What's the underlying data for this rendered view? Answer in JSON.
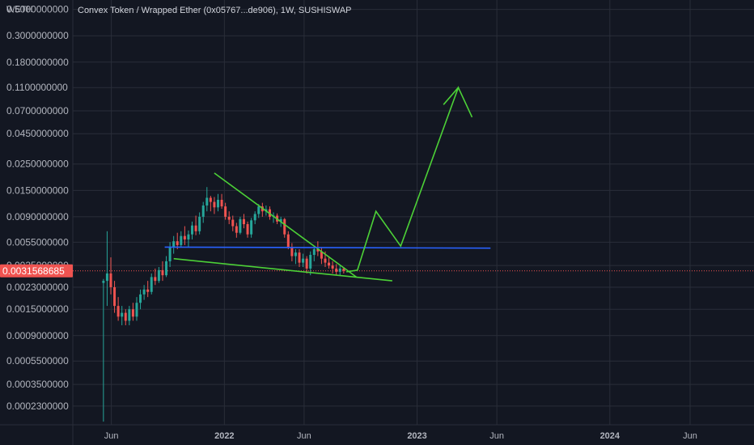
{
  "chart_data": {
    "type": "candlestick",
    "title": "Convex Token / Wrapped Ether (0x05767...de906), 1W, SUSHISWAP",
    "ylabel": "WETH",
    "y_scale": "log",
    "ylim": [
      0.00016,
      0.6
    ],
    "y_ticks": [
      {
        "value": 0.5,
        "label": "0.5000000000"
      },
      {
        "value": 0.3,
        "label": "0.3000000000"
      },
      {
        "value": 0.18,
        "label": "0.1800000000"
      },
      {
        "value": 0.11,
        "label": "0.1100000000"
      },
      {
        "value": 0.07,
        "label": "0.0700000000"
      },
      {
        "value": 0.045,
        "label": "0.0450000000"
      },
      {
        "value": 0.025,
        "label": "0.0250000000"
      },
      {
        "value": 0.015,
        "label": "0.0150000000"
      },
      {
        "value": 0.009,
        "label": "0.0090000000"
      },
      {
        "value": 0.0055,
        "label": "0.0055000000"
      },
      {
        "value": 0.0035,
        "label": "0.0035000000"
      },
      {
        "value": 0.0023,
        "label": "0.0023000000"
      },
      {
        "value": 0.0015,
        "label": "0.0015000000"
      },
      {
        "value": 0.0009,
        "label": "0.0009000000"
      },
      {
        "value": 0.00055,
        "label": "0.0005500000"
      },
      {
        "value": 0.00035,
        "label": "0.0003500000"
      },
      {
        "value": 0.00023,
        "label": "0.0002300000"
      }
    ],
    "xlim": [
      "2021-03-20",
      "2024-09-30"
    ],
    "x_ticks": [
      {
        "date": "2021-06-01",
        "label": "Jun",
        "major": false
      },
      {
        "date": "2022-01-01",
        "label": "2022",
        "major": true
      },
      {
        "date": "2022-06-01",
        "label": "Jun",
        "major": false
      },
      {
        "date": "2023-01-01",
        "label": "2023",
        "major": true
      },
      {
        "date": "2023-06-01",
        "label": "Jun",
        "major": false
      },
      {
        "date": "2024-01-01",
        "label": "2024",
        "major": true
      },
      {
        "date": "2024-06-01",
        "label": "Jun",
        "major": false
      }
    ],
    "last_price": {
      "value": 0.0031568685,
      "label": "0.0031568685"
    },
    "colors": {
      "up": "#26a69a",
      "down": "#ef5350",
      "grid": "#2a2e39",
      "background": "#131722",
      "trend_green": "#4cd137",
      "level_blue": "#2962ff",
      "price_tag": "#ef5350"
    },
    "candles": [
      {
        "date": "2021-05-17",
        "o": 0.0025,
        "h": 0.0027,
        "l": 0.00017,
        "c": 0.0026
      },
      {
        "date": "2021-05-24",
        "o": 0.0026,
        "h": 0.0068,
        "l": 0.0016,
        "c": 0.003
      },
      {
        "date": "2021-05-31",
        "o": 0.003,
        "h": 0.0041,
        "l": 0.002,
        "c": 0.0023
      },
      {
        "date": "2021-06-07",
        "o": 0.0023,
        "h": 0.0026,
        "l": 0.0014,
        "c": 0.0016
      },
      {
        "date": "2021-06-14",
        "o": 0.0016,
        "h": 0.0019,
        "l": 0.0012,
        "c": 0.0013
      },
      {
        "date": "2021-06-21",
        "o": 0.0013,
        "h": 0.0016,
        "l": 0.0011,
        "c": 0.0014
      },
      {
        "date": "2021-06-28",
        "o": 0.0014,
        "h": 0.0015,
        "l": 0.0011,
        "c": 0.0012
      },
      {
        "date": "2021-07-05",
        "o": 0.0012,
        "h": 0.0016,
        "l": 0.0011,
        "c": 0.0015
      },
      {
        "date": "2021-07-12",
        "o": 0.0015,
        "h": 0.0017,
        "l": 0.0012,
        "c": 0.0013
      },
      {
        "date": "2021-07-19",
        "o": 0.0013,
        "h": 0.0019,
        "l": 0.0012,
        "c": 0.0017
      },
      {
        "date": "2021-07-26",
        "o": 0.0017,
        "h": 0.0022,
        "l": 0.0015,
        "c": 0.002
      },
      {
        "date": "2021-08-02",
        "o": 0.002,
        "h": 0.0024,
        "l": 0.0018,
        "c": 0.0022
      },
      {
        "date": "2021-08-09",
        "o": 0.0022,
        "h": 0.0026,
        "l": 0.0019,
        "c": 0.0021
      },
      {
        "date": "2021-08-16",
        "o": 0.0021,
        "h": 0.003,
        "l": 0.002,
        "c": 0.0028
      },
      {
        "date": "2021-08-23",
        "o": 0.0028,
        "h": 0.0033,
        "l": 0.0024,
        "c": 0.0026
      },
      {
        "date": "2021-08-30",
        "o": 0.0026,
        "h": 0.0034,
        "l": 0.0025,
        "c": 0.0032
      },
      {
        "date": "2021-09-06",
        "o": 0.0032,
        "h": 0.0038,
        "l": 0.0026,
        "c": 0.0029
      },
      {
        "date": "2021-09-13",
        "o": 0.0029,
        "h": 0.0042,
        "l": 0.0028,
        "c": 0.0038
      },
      {
        "date": "2021-09-20",
        "o": 0.0038,
        "h": 0.0055,
        "l": 0.0034,
        "c": 0.005
      },
      {
        "date": "2021-09-27",
        "o": 0.005,
        "h": 0.0062,
        "l": 0.0044,
        "c": 0.0056
      },
      {
        "date": "2021-10-04",
        "o": 0.0056,
        "h": 0.0066,
        "l": 0.0048,
        "c": 0.0052
      },
      {
        "date": "2021-10-11",
        "o": 0.0052,
        "h": 0.0068,
        "l": 0.005,
        "c": 0.0062
      },
      {
        "date": "2021-10-18",
        "o": 0.0062,
        "h": 0.0075,
        "l": 0.0052,
        "c": 0.0058
      },
      {
        "date": "2021-10-25",
        "o": 0.0058,
        "h": 0.0069,
        "l": 0.005,
        "c": 0.0064
      },
      {
        "date": "2021-11-01",
        "o": 0.0064,
        "h": 0.0082,
        "l": 0.0058,
        "c": 0.0076
      },
      {
        "date": "2021-11-08",
        "o": 0.0076,
        "h": 0.0092,
        "l": 0.0063,
        "c": 0.0068
      },
      {
        "date": "2021-11-15",
        "o": 0.0068,
        "h": 0.0098,
        "l": 0.0064,
        "c": 0.009
      },
      {
        "date": "2021-11-22",
        "o": 0.009,
        "h": 0.012,
        "l": 0.008,
        "c": 0.0112
      },
      {
        "date": "2021-11-29",
        "o": 0.0112,
        "h": 0.016,
        "l": 0.01,
        "c": 0.013
      },
      {
        "date": "2021-12-06",
        "o": 0.013,
        "h": 0.0135,
        "l": 0.01,
        "c": 0.012
      },
      {
        "date": "2021-12-13",
        "o": 0.012,
        "h": 0.0132,
        "l": 0.0095,
        "c": 0.0108
      },
      {
        "date": "2021-12-20",
        "o": 0.0108,
        "h": 0.014,
        "l": 0.01,
        "c": 0.0125
      },
      {
        "date": "2021-12-27",
        "o": 0.0125,
        "h": 0.014,
        "l": 0.0105,
        "c": 0.011
      },
      {
        "date": "2022-01-03",
        "o": 0.011,
        "h": 0.0118,
        "l": 0.0085,
        "c": 0.009
      },
      {
        "date": "2022-01-10",
        "o": 0.009,
        "h": 0.01,
        "l": 0.0078,
        "c": 0.0085
      },
      {
        "date": "2022-01-17",
        "o": 0.0085,
        "h": 0.0092,
        "l": 0.0068,
        "c": 0.0075
      },
      {
        "date": "2022-01-24",
        "o": 0.0075,
        "h": 0.008,
        "l": 0.006,
        "c": 0.0066
      },
      {
        "date": "2022-01-31",
        "o": 0.0066,
        "h": 0.009,
        "l": 0.0064,
        "c": 0.0086
      },
      {
        "date": "2022-02-07",
        "o": 0.0086,
        "h": 0.0095,
        "l": 0.0072,
        "c": 0.0078
      },
      {
        "date": "2022-02-14",
        "o": 0.0078,
        "h": 0.0082,
        "l": 0.006,
        "c": 0.0064
      },
      {
        "date": "2022-02-21",
        "o": 0.0064,
        "h": 0.0088,
        "l": 0.006,
        "c": 0.0084
      },
      {
        "date": "2022-02-28",
        "o": 0.0084,
        "h": 0.01,
        "l": 0.0078,
        "c": 0.0095
      },
      {
        "date": "2022-03-07",
        "o": 0.0095,
        "h": 0.0115,
        "l": 0.0088,
        "c": 0.011
      },
      {
        "date": "2022-03-14",
        "o": 0.011,
        "h": 0.0118,
        "l": 0.009,
        "c": 0.01
      },
      {
        "date": "2022-03-21",
        "o": 0.01,
        "h": 0.0112,
        "l": 0.0092,
        "c": 0.0104
      },
      {
        "date": "2022-03-28",
        "o": 0.0104,
        "h": 0.011,
        "l": 0.0085,
        "c": 0.009
      },
      {
        "date": "2022-04-04",
        "o": 0.009,
        "h": 0.0098,
        "l": 0.008,
        "c": 0.0092
      },
      {
        "date": "2022-04-11",
        "o": 0.0092,
        "h": 0.0096,
        "l": 0.0078,
        "c": 0.0082
      },
      {
        "date": "2022-04-18",
        "o": 0.0082,
        "h": 0.009,
        "l": 0.0074,
        "c": 0.0086
      },
      {
        "date": "2022-04-25",
        "o": 0.0086,
        "h": 0.0088,
        "l": 0.006,
        "c": 0.0064
      },
      {
        "date": "2022-05-02",
        "o": 0.0064,
        "h": 0.0068,
        "l": 0.0048,
        "c": 0.005
      },
      {
        "date": "2022-05-09",
        "o": 0.005,
        "h": 0.0054,
        "l": 0.0038,
        "c": 0.0042
      },
      {
        "date": "2022-05-16",
        "o": 0.0042,
        "h": 0.0048,
        "l": 0.0036,
        "c": 0.0045
      },
      {
        "date": "2022-05-23",
        "o": 0.0045,
        "h": 0.0048,
        "l": 0.0034,
        "c": 0.0037
      },
      {
        "date": "2022-05-30",
        "o": 0.0037,
        "h": 0.0044,
        "l": 0.0034,
        "c": 0.004
      },
      {
        "date": "2022-06-06",
        "o": 0.004,
        "h": 0.0042,
        "l": 0.003,
        "c": 0.0033
      },
      {
        "date": "2022-06-13",
        "o": 0.0033,
        "h": 0.0046,
        "l": 0.0029,
        "c": 0.0043
      },
      {
        "date": "2022-06-20",
        "o": 0.0043,
        "h": 0.005,
        "l": 0.0038,
        "c": 0.0048
      },
      {
        "date": "2022-06-27",
        "o": 0.0048,
        "h": 0.0056,
        "l": 0.0042,
        "c": 0.0046
      },
      {
        "date": "2022-07-04",
        "o": 0.0046,
        "h": 0.005,
        "l": 0.0036,
        "c": 0.004
      },
      {
        "date": "2022-07-11",
        "o": 0.004,
        "h": 0.0046,
        "l": 0.0034,
        "c": 0.0037
      },
      {
        "date": "2022-07-18",
        "o": 0.0037,
        "h": 0.0042,
        "l": 0.0033,
        "c": 0.0035
      },
      {
        "date": "2022-07-25",
        "o": 0.0035,
        "h": 0.0038,
        "l": 0.003,
        "c": 0.0033
      },
      {
        "date": "2022-08-01",
        "o": 0.0033,
        "h": 0.0036,
        "l": 0.0029,
        "c": 0.0031
      },
      {
        "date": "2022-08-08",
        "o": 0.0031,
        "h": 0.0035,
        "l": 0.0029,
        "c": 0.0033
      },
      {
        "date": "2022-08-15",
        "o": 0.0033,
        "h": 0.0034,
        "l": 0.003,
        "c": 0.0031568685
      }
    ],
    "drawings": [
      {
        "name": "upper-trendline",
        "color": "#4cd137",
        "points": [
          [
            "2021-12-13",
            0.021
          ],
          [
            "2022-09-08",
            0.0028
          ]
        ]
      },
      {
        "name": "lower-trendline",
        "color": "#4cd137",
        "points": [
          [
            "2021-09-27",
            0.004
          ],
          [
            "2022-11-15",
            0.0026
          ]
        ]
      },
      {
        "name": "horizontal-level",
        "color": "#2962ff",
        "points": [
          [
            "2021-09-10",
            0.005
          ],
          [
            "2023-05-20",
            0.0049
          ]
        ]
      },
      {
        "name": "projection-path",
        "color": "#4cd137",
        "points": [
          [
            "2022-08-20",
            0.0031
          ],
          [
            "2022-09-10",
            0.0032
          ],
          [
            "2022-10-15",
            0.01
          ],
          [
            "2022-12-01",
            0.0051
          ],
          [
            "2023-03-20",
            0.11
          ],
          [
            "2023-04-15",
            0.062
          ]
        ]
      },
      {
        "name": "projection-tail",
        "color": "#4cd137",
        "points": [
          [
            "2023-02-20",
            0.079
          ],
          [
            "2023-03-20",
            0.11
          ]
        ]
      }
    ]
  }
}
